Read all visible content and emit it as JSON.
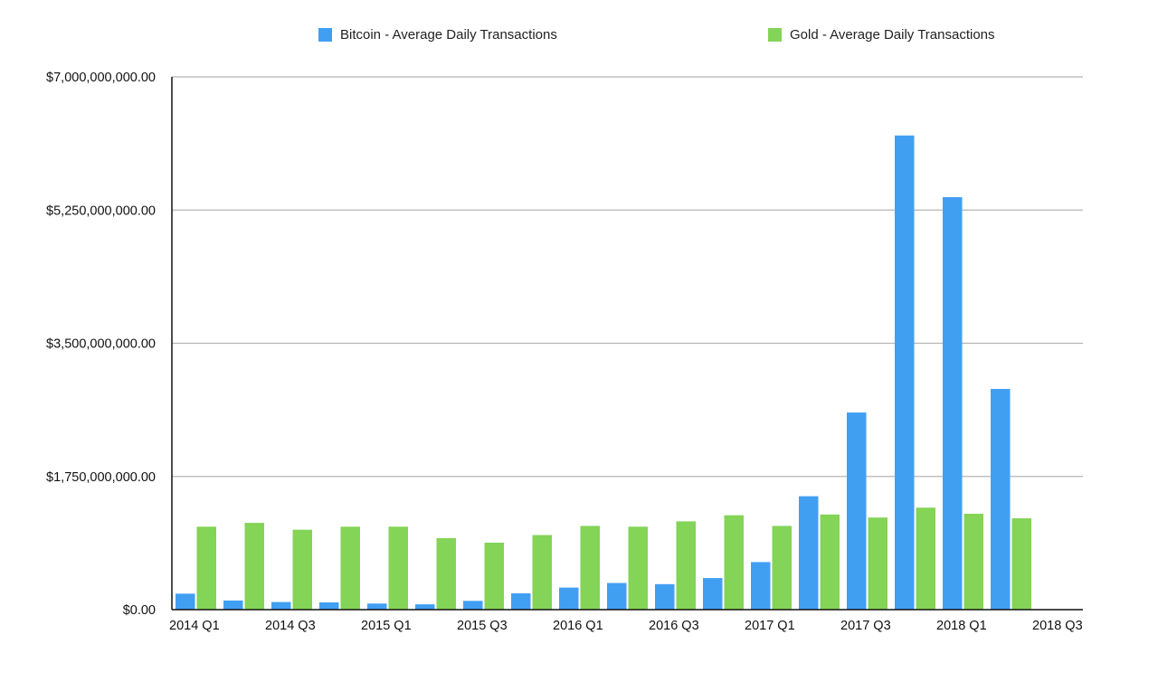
{
  "chart_data": {
    "type": "bar",
    "categories": [
      "2014 Q1",
      "2014 Q2",
      "2014 Q3",
      "2014 Q4",
      "2015 Q1",
      "2015 Q2",
      "2015 Q3",
      "2015 Q4",
      "2016 Q1",
      "2016 Q2",
      "2016 Q3",
      "2016 Q4",
      "2017 Q1",
      "2017 Q2",
      "2017 Q3",
      "2017 Q4",
      "2018 Q1",
      "2018 Q2",
      "2018 Q3"
    ],
    "x_tick_labels": [
      "2014 Q1",
      "2014 Q3",
      "2015 Q1",
      "2015 Q3",
      "2016 Q1",
      "2016 Q3",
      "2017 Q1",
      "2017 Q3",
      "2018 Q1",
      "2018 Q3"
    ],
    "series": [
      {
        "name": "Bitcoin - Average Daily Transactions",
        "color": "#419ff2",
        "values": [
          210000000,
          120000000,
          100000000,
          95000000,
          80000000,
          70000000,
          115000000,
          215000000,
          290000000,
          350000000,
          335000000,
          415000000,
          625000000,
          1490000000,
          2590000000,
          6230000000,
          5420000000,
          2900000000,
          null
        ]
      },
      {
        "name": "Gold - Average Daily Transactions",
        "color": "#83d457",
        "values": [
          1090000000,
          1140000000,
          1050000000,
          1090000000,
          1090000000,
          940000000,
          880000000,
          980000000,
          1100000000,
          1090000000,
          1160000000,
          1240000000,
          1100000000,
          1250000000,
          1210000000,
          1340000000,
          1260000000,
          1200000000,
          null
        ]
      }
    ],
    "y_tick_labels": [
      "$0.00",
      "$1,750,000,000.00",
      "$3,500,000,000.00",
      "$5,250,000,000.00",
      "$7,000,000,000.00"
    ],
    "y_ticks": [
      0,
      1750000000,
      3500000000,
      5250000000,
      7000000000
    ],
    "ylim": [
      0,
      7000000000
    ],
    "grid": true,
    "legend_position": "top"
  }
}
